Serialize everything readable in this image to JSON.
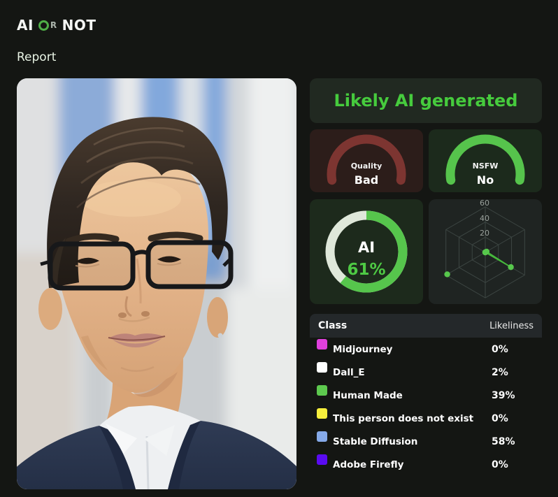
{
  "header": {
    "logo_ai": "AI",
    "logo_or_o": "O",
    "logo_or_r": "R",
    "logo_not": "NOT",
    "page_title": "Report"
  },
  "verdict": {
    "label": "Likely AI generated",
    "color": "#46cb3d"
  },
  "gauges": [
    {
      "label": "Quality",
      "value": "Bad",
      "arc_color": "#7d3531",
      "bg": "#2c1d1a"
    },
    {
      "label": "NSFW",
      "value": "No",
      "arc_color": "#56c44c",
      "bg": "#1c2a1c"
    }
  ],
  "donut": {
    "label": "AI",
    "percent": 61,
    "percent_label": "61%",
    "ring_color": "#56c54c",
    "rest_color": "#dfe8da",
    "bg": "#1d2a1c"
  },
  "chart_data": [
    {
      "type": "gauge",
      "title": "Quality",
      "value_label": "Bad",
      "fill_fraction": 1.0,
      "color": "#7d3531"
    },
    {
      "type": "gauge",
      "title": "NSFW",
      "value_label": "No",
      "fill_fraction": 1.0,
      "color": "#56c44c"
    },
    {
      "type": "donut",
      "title": "AI",
      "percent": 61,
      "color": "#56c54c"
    },
    {
      "type": "radar",
      "max": 60,
      "ticks": [
        "20",
        "40",
        "60"
      ],
      "axes": [
        "Midjourney",
        "Dall_E",
        "Human Made",
        "This person does not exist",
        "Stable Diffusion",
        "Adobe Firefly"
      ],
      "values": [
        0,
        2,
        39,
        0,
        58,
        0
      ],
      "grid_color": "#3d4643",
      "tick_color": "#9aa19c",
      "point_color": "#57c74c",
      "line_color": "#46b83c"
    }
  ],
  "table": {
    "class_header": "Class",
    "likeliness_header": "Likeliness",
    "rows": [
      {
        "label": "Midjourney",
        "percent": "0%",
        "color": "#e040dd"
      },
      {
        "label": "Dall_E",
        "percent": "2%",
        "color": "#ffffff"
      },
      {
        "label": "Human Made",
        "percent": "39%",
        "color": "#5dc94e"
      },
      {
        "label": "This person does not exist",
        "percent": "0%",
        "color": "#f6ef3c"
      },
      {
        "label": "Stable Diffusion",
        "percent": "58%",
        "color": "#85a9e8"
      },
      {
        "label": "Adobe Firefly",
        "percent": "0%",
        "color": "#5a0bf2"
      }
    ]
  }
}
